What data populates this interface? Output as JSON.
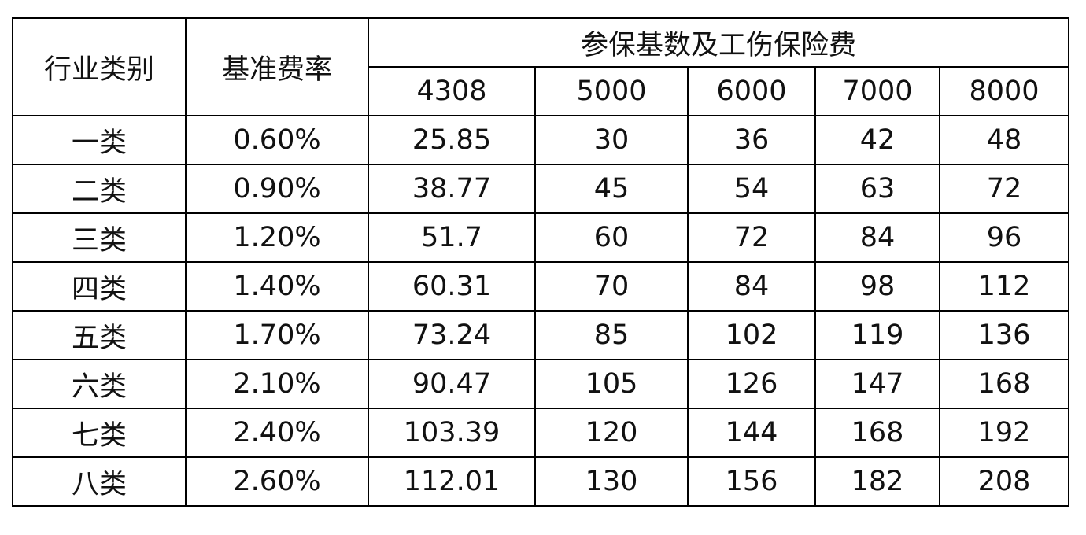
{
  "table": {
    "headers": [
      "行业类别",
      "基准费率",
      "参保基数及工伤保险费"
    ],
    "bases": [
      "4308",
      "5000",
      "6000",
      "7000",
      "8000"
    ],
    "rows": [
      [
        "一类",
        "0.60%",
        "25.85",
        "30",
        "36",
        "42",
        "48"
      ],
      [
        "二类",
        "0.90%",
        "38.77",
        "45",
        "54",
        "63",
        "72"
      ],
      [
        "三类",
        "1.20%",
        "51.7",
        "60",
        "72",
        "84",
        "96"
      ],
      [
        "四类",
        "1.40%",
        "60.31",
        "70",
        "84",
        "98",
        "112"
      ],
      [
        "五类",
        "1.70%",
        "73.24",
        "85",
        "102",
        "119",
        "136"
      ],
      [
        "六类",
        "2.10%",
        "90.47",
        "105",
        "126",
        "147",
        "168"
      ],
      [
        "七类",
        "2.40%",
        "103.39",
        "120",
        "144",
        "168",
        "192"
      ],
      [
        "八类",
        "2.60%",
        "112.01",
        "130",
        "156",
        "182",
        "208"
      ]
    ]
  }
}
